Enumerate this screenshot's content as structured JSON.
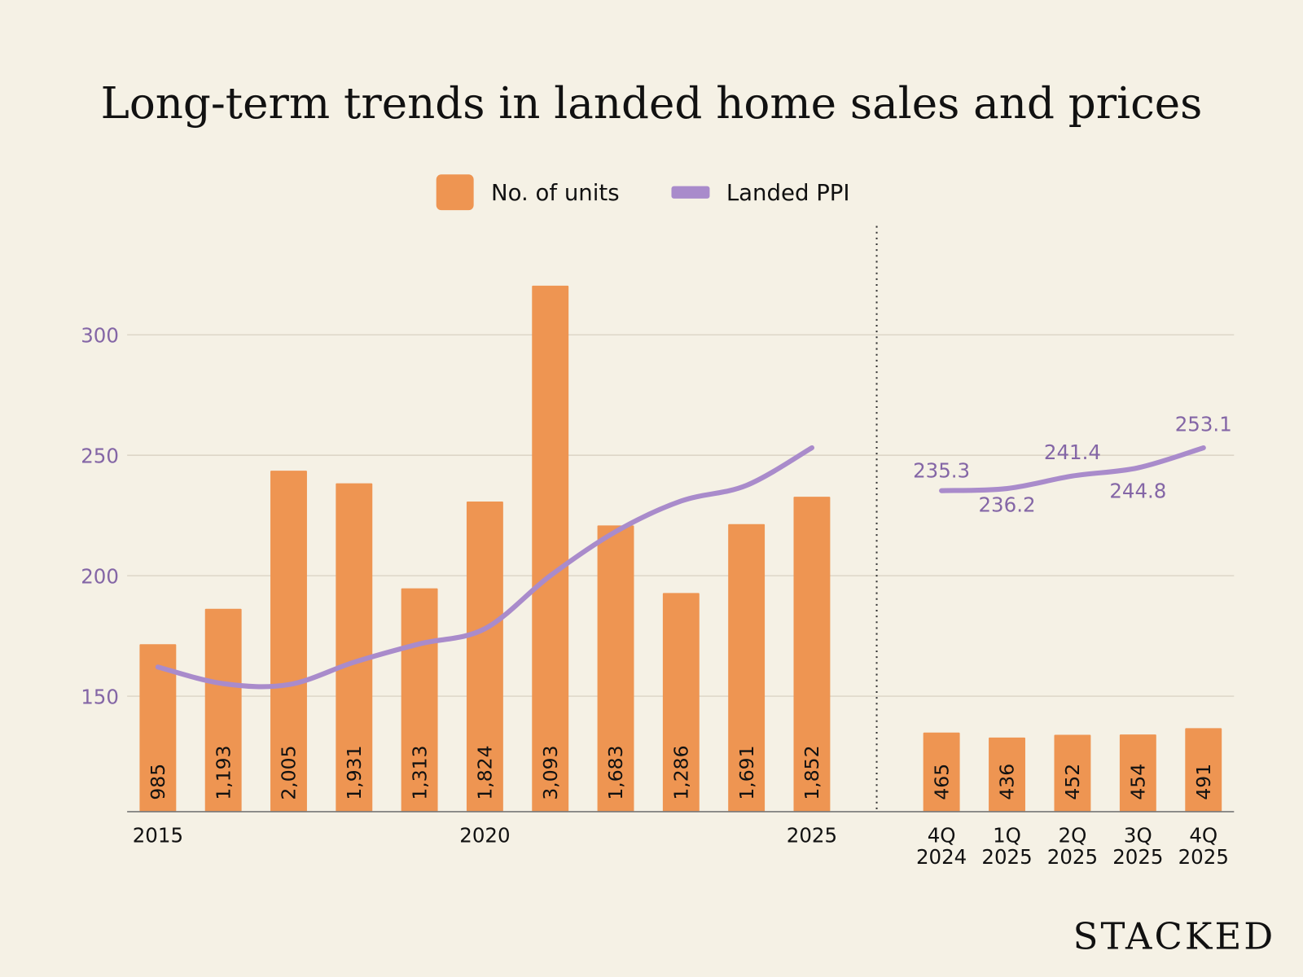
{
  "colors": {
    "background": "#F5F1E5",
    "bars": "#EE9552",
    "line": "#A98BCB",
    "axis_labels": "#8466A6"
  },
  "logo": "STACKED",
  "chart_data": {
    "type": "bar+line",
    "title": "Long-term trends in landed home sales and prices",
    "legend": {
      "placement": "top-center",
      "items": [
        "No. of units",
        "Landed PPI"
      ]
    },
    "y_axis": {
      "label": "",
      "ticks": [
        150,
        200,
        250,
        300
      ],
      "grid": true
    },
    "annual": {
      "x": [
        2015,
        2016,
        2017,
        2018,
        2019,
        2020,
        2021,
        2022,
        2023,
        2024,
        2025
      ],
      "x_tick_labels": [
        "2015",
        "",
        "",
        "",
        "",
        "2020",
        "",
        "",
        "",
        "",
        "2025"
      ],
      "units": [
        985,
        1193,
        2005,
        1931,
        1313,
        1824,
        3093,
        1683,
        1286,
        1691,
        1852
      ],
      "unit_labels": [
        "985",
        "1,193",
        "2,005",
        "1,931",
        "1,313",
        "1,824",
        "3,093",
        "1,683",
        "1,286",
        "1,691",
        "1,852"
      ],
      "ppi": [
        162.1,
        155.2,
        154.8,
        164.1,
        171.7,
        178.0,
        200.0,
        218.3,
        231.0,
        237.5,
        253.1
      ]
    },
    "quarterly": {
      "x_tick_labels": [
        [
          "4Q",
          "2024"
        ],
        [
          "1Q",
          "2025"
        ],
        [
          "2Q",
          "2025"
        ],
        [
          "3Q",
          "2025"
        ],
        [
          "4Q",
          "2025"
        ]
      ],
      "units": [
        465,
        436,
        452,
        454,
        491
      ],
      "unit_labels": [
        "465",
        "436",
        "452",
        "454",
        "491"
      ],
      "ppi": [
        235.3,
        236.2,
        241.4,
        244.8,
        253.1
      ],
      "ppi_labels": [
        "235.3",
        "236.2",
        "241.4",
        "244.8",
        "253.1"
      ]
    }
  }
}
